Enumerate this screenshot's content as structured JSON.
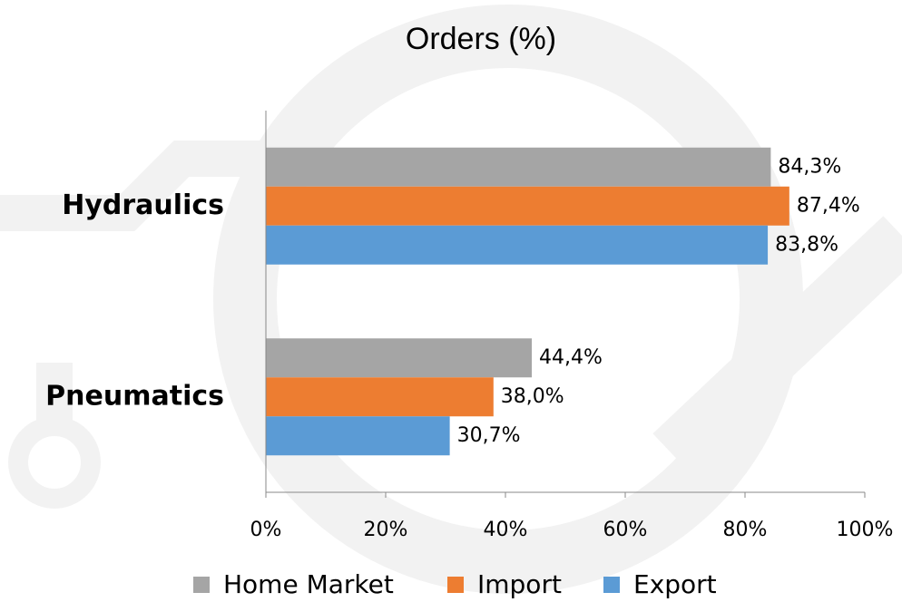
{
  "chart_data": {
    "type": "hbar",
    "title": "Orders (%)",
    "categories": [
      "Hydraulics",
      "Pneumatics"
    ],
    "series": [
      {
        "name": "Home Market",
        "color": "#a5a5a5",
        "values": [
          84.3,
          44.4
        ],
        "value_labels": [
          "84,3%",
          "44,4%"
        ]
      },
      {
        "name": "Import",
        "color": "#ed7d31",
        "values": [
          87.4,
          38.0
        ],
        "value_labels": [
          "87,4%",
          "38,0%"
        ]
      },
      {
        "name": "Export",
        "color": "#5b9bd5",
        "values": [
          83.8,
          30.7
        ],
        "value_labels": [
          "83,8%",
          "30,7%"
        ]
      }
    ],
    "xlim": [
      0,
      100
    ],
    "xticks": [
      {
        "value": 0,
        "label": "0%"
      },
      {
        "value": 20,
        "label": "20%"
      },
      {
        "value": 40,
        "label": "40%"
      },
      {
        "value": 60,
        "label": "60%"
      },
      {
        "value": 80,
        "label": "80%"
      },
      {
        "value": 100,
        "label": "100%"
      }
    ],
    "legend": "bottom"
  }
}
